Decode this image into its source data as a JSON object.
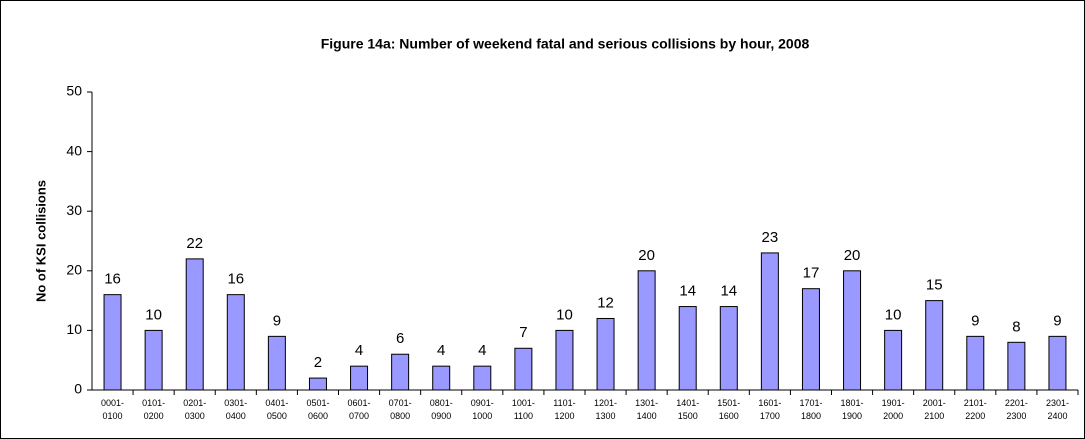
{
  "chart_data": {
    "type": "bar",
    "title": "Figure 14a: Number of weekend fatal and serious collisions by hour, 2008",
    "y_label": "No of KSI collisions",
    "categories": [
      "0001-\n0100",
      "0101-\n0200",
      "0201-\n0300",
      "0301-\n0400",
      "0401-\n0500",
      "0501-\n0600",
      "0601-\n0700",
      "0701-\n0800",
      "0801-\n0900",
      "0901-\n1000",
      "1001-\n1100",
      "1101-\n1200",
      "1201-\n1300",
      "1301-\n1400",
      "1401-\n1500",
      "1501-\n1600",
      "1601-\n1700",
      "1701-\n1800",
      "1801-\n1900",
      "1901-\n2000",
      "2001-\n2100",
      "2101-\n2200",
      "2201-\n2300",
      "2301-\n2400"
    ],
    "values": [
      16,
      10,
      22,
      16,
      9,
      2,
      4,
      6,
      4,
      4,
      7,
      10,
      12,
      20,
      14,
      14,
      23,
      17,
      20,
      10,
      15,
      9,
      8,
      9
    ],
    "color": "#9999ff",
    "ylim": [
      0,
      50
    ],
    "yticks": [
      0,
      10,
      20,
      30,
      40,
      50
    ],
    "grid": false
  }
}
